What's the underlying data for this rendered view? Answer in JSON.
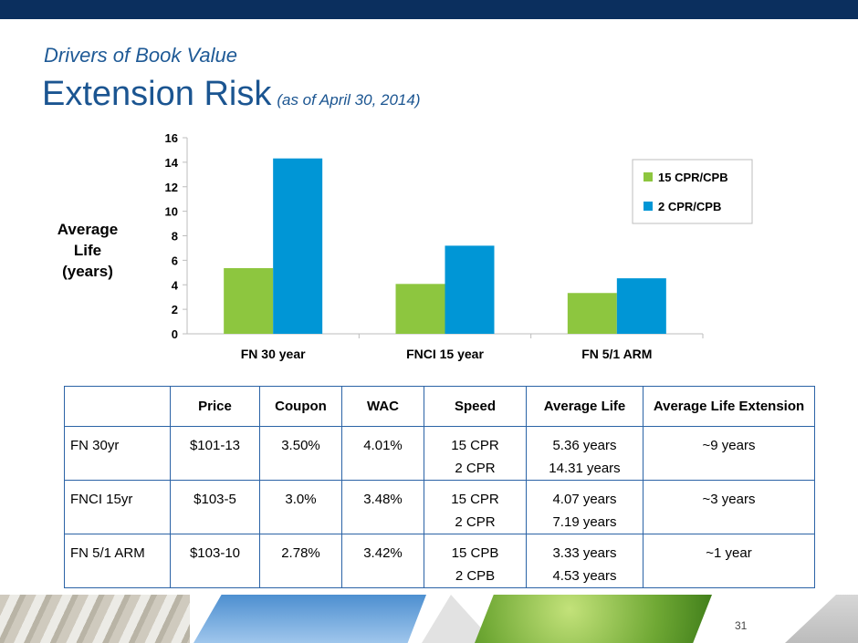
{
  "slide": {
    "kicker": "Drivers of Book Value",
    "title": "Extension Risk",
    "title_sub": "(as of April 30, 2014)",
    "page_number": "31"
  },
  "ylabel_block": {
    "line1": "Average",
    "line2": "Life",
    "line3": "(years)"
  },
  "chart_data": {
    "type": "bar",
    "categories": [
      "FN 30 year",
      "FNCI 15 year",
      "FN 5/1 ARM"
    ],
    "series": [
      {
        "name": "15 CPR/CPB",
        "values": [
          5.36,
          4.07,
          3.33
        ],
        "color": "#8dc63f"
      },
      {
        "name": "2 CPR/CPB",
        "values": [
          14.31,
          7.19,
          4.53
        ],
        "color": "#0096d6"
      }
    ],
    "ylim": [
      0,
      16
    ],
    "yticks": [
      0,
      2,
      4,
      6,
      8,
      10,
      12,
      14,
      16
    ],
    "legend_position": "right",
    "grid": false
  },
  "table": {
    "headers": [
      "",
      "Price",
      "Coupon",
      "WAC",
      "Speed",
      "Average Life",
      "Average Life Extension"
    ],
    "rows": [
      {
        "name": "FN 30yr",
        "price": "$101-13",
        "coupon": "3.50%",
        "wac": "4.01%",
        "speed1": "15 CPR",
        "speed2": "2 CPR",
        "life1": "5.36 years",
        "life2": "14.31 years",
        "ext": "~9 years"
      },
      {
        "name": "FNCI 15yr",
        "price": "$103-5",
        "coupon": "3.0%",
        "wac": "3.48%",
        "speed1": "15 CPR",
        "speed2": "2 CPR",
        "life1": "4.07 years",
        "life2": "7.19 years",
        "ext": "~3 years"
      },
      {
        "name": "FN 5/1 ARM",
        "price": "$103-10",
        "coupon": "2.78%",
        "wac": "3.42%",
        "speed1": "15 CPB",
        "speed2": "2 CPB",
        "life1": "3.33 years",
        "life2": "4.53 years",
        "ext": "~1 year"
      }
    ]
  },
  "colors": {
    "header_bar": "#0b2f5e",
    "title_blue": "#1b5591",
    "table_border": "#2b63a6"
  }
}
